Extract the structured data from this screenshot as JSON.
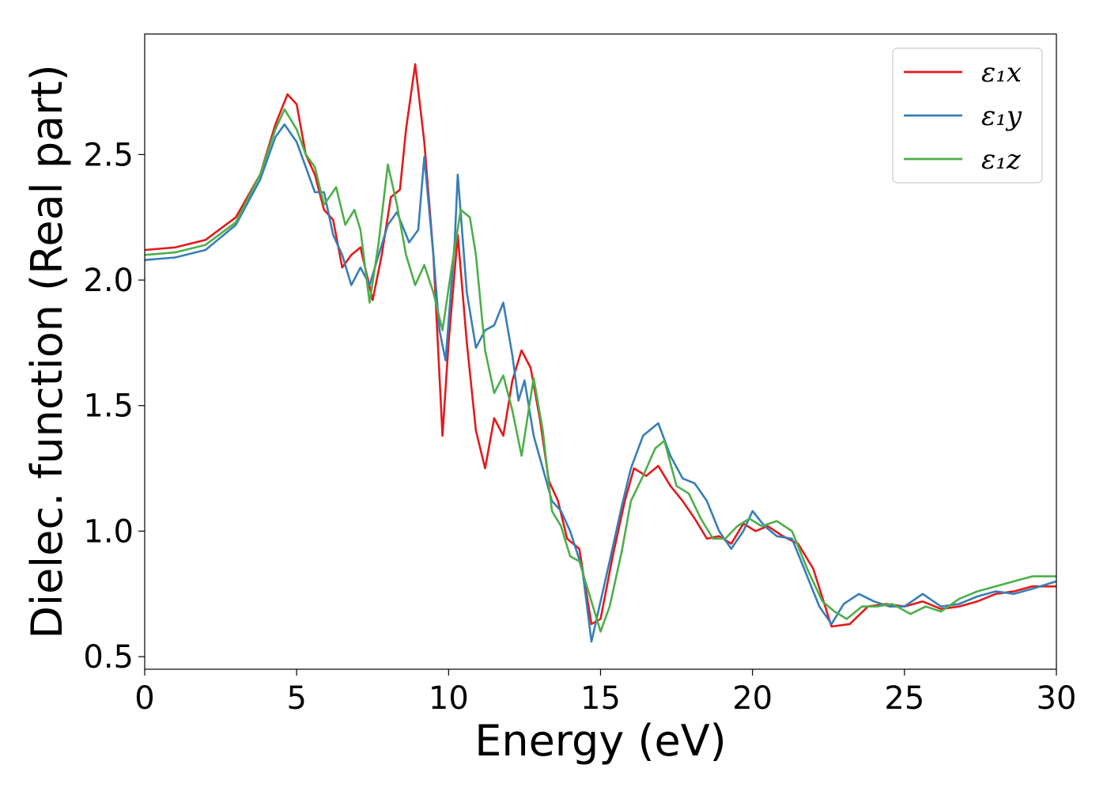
{
  "chart_data": {
    "type": "line",
    "xlabel": "Energy (eV)",
    "ylabel": "Dielec. function (Real part)",
    "xlim": [
      0,
      30
    ],
    "ylim": [
      0.45,
      2.98
    ],
    "xticks": [
      0,
      5,
      10,
      15,
      20,
      25,
      30
    ],
    "xtick_labels": [
      "0",
      "5",
      "10",
      "15",
      "20",
      "25",
      "30"
    ],
    "yticks": [
      0.5,
      1.0,
      1.5,
      2.0,
      2.5
    ],
    "ytick_labels": [
      "0.5",
      "1.0",
      "1.5",
      "2.0",
      "2.5"
    ],
    "grid": false,
    "legend_position": "top-right",
    "series": [
      {
        "name": "ε₁x",
        "color": "#e41a1c",
        "points": [
          [
            0,
            2.12
          ],
          [
            1,
            2.13
          ],
          [
            2,
            2.16
          ],
          [
            3,
            2.25
          ],
          [
            3.8,
            2.42
          ],
          [
            4.3,
            2.62
          ],
          [
            4.7,
            2.74
          ],
          [
            5.0,
            2.7
          ],
          [
            5.3,
            2.5
          ],
          [
            5.6,
            2.42
          ],
          [
            5.9,
            2.28
          ],
          [
            6.2,
            2.24
          ],
          [
            6.5,
            2.05
          ],
          [
            6.8,
            2.1
          ],
          [
            7.1,
            2.13
          ],
          [
            7.5,
            1.92
          ],
          [
            7.8,
            2.1
          ],
          [
            8.1,
            2.33
          ],
          [
            8.4,
            2.36
          ],
          [
            8.6,
            2.6
          ],
          [
            8.9,
            2.86
          ],
          [
            9.2,
            2.55
          ],
          [
            9.5,
            2.1
          ],
          [
            9.8,
            1.38
          ],
          [
            10.0,
            1.75
          ],
          [
            10.3,
            2.18
          ],
          [
            10.6,
            1.75
          ],
          [
            10.9,
            1.4
          ],
          [
            11.2,
            1.25
          ],
          [
            11.5,
            1.45
          ],
          [
            11.8,
            1.38
          ],
          [
            12.1,
            1.6
          ],
          [
            12.4,
            1.72
          ],
          [
            12.7,
            1.65
          ],
          [
            13.0,
            1.45
          ],
          [
            13.3,
            1.2
          ],
          [
            13.6,
            1.12
          ],
          [
            13.9,
            0.97
          ],
          [
            14.3,
            0.93
          ],
          [
            14.7,
            0.63
          ],
          [
            15.0,
            0.65
          ],
          [
            15.4,
            0.9
          ],
          [
            15.8,
            1.12
          ],
          [
            16.1,
            1.25
          ],
          [
            16.5,
            1.22
          ],
          [
            16.9,
            1.26
          ],
          [
            17.3,
            1.18
          ],
          [
            17.7,
            1.12
          ],
          [
            18.1,
            1.05
          ],
          [
            18.5,
            0.97
          ],
          [
            18.9,
            0.98
          ],
          [
            19.3,
            0.95
          ],
          [
            19.7,
            1.03
          ],
          [
            20.1,
            1.0
          ],
          [
            20.5,
            1.02
          ],
          [
            21.0,
            0.98
          ],
          [
            21.5,
            0.95
          ],
          [
            22.0,
            0.85
          ],
          [
            22.6,
            0.62
          ],
          [
            23.2,
            0.63
          ],
          [
            23.8,
            0.7
          ],
          [
            24.4,
            0.71
          ],
          [
            25.0,
            0.7
          ],
          [
            25.6,
            0.72
          ],
          [
            26.2,
            0.69
          ],
          [
            26.8,
            0.7
          ],
          [
            27.4,
            0.72
          ],
          [
            28.0,
            0.75
          ],
          [
            28.6,
            0.76
          ],
          [
            29.2,
            0.78
          ],
          [
            30,
            0.78
          ]
        ]
      },
      {
        "name": "ε₁y",
        "color": "#377eb8",
        "points": [
          [
            0,
            2.08
          ],
          [
            1,
            2.09
          ],
          [
            2,
            2.12
          ],
          [
            3,
            2.22
          ],
          [
            3.8,
            2.4
          ],
          [
            4.3,
            2.57
          ],
          [
            4.6,
            2.62
          ],
          [
            5.0,
            2.55
          ],
          [
            5.3,
            2.45
          ],
          [
            5.6,
            2.35
          ],
          [
            5.9,
            2.35
          ],
          [
            6.2,
            2.18
          ],
          [
            6.5,
            2.1
          ],
          [
            6.8,
            1.98
          ],
          [
            7.1,
            2.05
          ],
          [
            7.4,
            1.98
          ],
          [
            7.7,
            2.1
          ],
          [
            8.0,
            2.22
          ],
          [
            8.3,
            2.27
          ],
          [
            8.7,
            2.15
          ],
          [
            9.0,
            2.2
          ],
          [
            9.2,
            2.49
          ],
          [
            9.5,
            2.1
          ],
          [
            9.7,
            1.8
          ],
          [
            9.9,
            1.68
          ],
          [
            10.2,
            2.15
          ],
          [
            10.3,
            2.42
          ],
          [
            10.6,
            1.95
          ],
          [
            10.9,
            1.73
          ],
          [
            11.2,
            1.8
          ],
          [
            11.5,
            1.82
          ],
          [
            11.8,
            1.91
          ],
          [
            12.1,
            1.7
          ],
          [
            12.3,
            1.52
          ],
          [
            12.5,
            1.6
          ],
          [
            12.8,
            1.38
          ],
          [
            13.1,
            1.25
          ],
          [
            13.4,
            1.12
          ],
          [
            13.7,
            1.08
          ],
          [
            14.0,
            1.0
          ],
          [
            14.4,
            0.85
          ],
          [
            14.7,
            0.56
          ],
          [
            15.0,
            0.72
          ],
          [
            15.3,
            0.88
          ],
          [
            15.7,
            1.1
          ],
          [
            16.0,
            1.25
          ],
          [
            16.4,
            1.38
          ],
          [
            16.9,
            1.43
          ],
          [
            17.3,
            1.3
          ],
          [
            17.7,
            1.21
          ],
          [
            18.1,
            1.19
          ],
          [
            18.5,
            1.12
          ],
          [
            18.9,
            1.0
          ],
          [
            19.3,
            0.93
          ],
          [
            19.7,
            1.0
          ],
          [
            20.0,
            1.08
          ],
          [
            20.4,
            1.02
          ],
          [
            20.8,
            0.98
          ],
          [
            21.3,
            0.97
          ],
          [
            21.7,
            0.85
          ],
          [
            22.2,
            0.7
          ],
          [
            22.6,
            0.63
          ],
          [
            23.0,
            0.71
          ],
          [
            23.5,
            0.75
          ],
          [
            24.0,
            0.72
          ],
          [
            24.5,
            0.7
          ],
          [
            25.0,
            0.7
          ],
          [
            25.6,
            0.75
          ],
          [
            26.2,
            0.7
          ],
          [
            26.8,
            0.71
          ],
          [
            27.4,
            0.74
          ],
          [
            28.0,
            0.76
          ],
          [
            28.6,
            0.75
          ],
          [
            29.2,
            0.77
          ],
          [
            30,
            0.8
          ]
        ]
      },
      {
        "name": "ε₁z",
        "color": "#4daf4a",
        "points": [
          [
            0,
            2.1
          ],
          [
            1,
            2.11
          ],
          [
            2,
            2.14
          ],
          [
            3,
            2.23
          ],
          [
            3.8,
            2.42
          ],
          [
            4.3,
            2.6
          ],
          [
            4.6,
            2.68
          ],
          [
            5.0,
            2.6
          ],
          [
            5.3,
            2.5
          ],
          [
            5.6,
            2.45
          ],
          [
            5.9,
            2.3
          ],
          [
            6.3,
            2.37
          ],
          [
            6.6,
            2.22
          ],
          [
            6.9,
            2.28
          ],
          [
            7.1,
            2.2
          ],
          [
            7.4,
            1.91
          ],
          [
            7.7,
            2.15
          ],
          [
            8.0,
            2.46
          ],
          [
            8.3,
            2.3
          ],
          [
            8.6,
            2.1
          ],
          [
            8.9,
            1.98
          ],
          [
            9.2,
            2.06
          ],
          [
            9.5,
            1.95
          ],
          [
            9.8,
            1.8
          ],
          [
            10.1,
            2.05
          ],
          [
            10.4,
            2.28
          ],
          [
            10.7,
            2.25
          ],
          [
            10.9,
            2.1
          ],
          [
            11.2,
            1.72
          ],
          [
            11.5,
            1.55
          ],
          [
            11.8,
            1.62
          ],
          [
            12.1,
            1.48
          ],
          [
            12.4,
            1.3
          ],
          [
            12.8,
            1.61
          ],
          [
            13.1,
            1.4
          ],
          [
            13.4,
            1.08
          ],
          [
            13.7,
            1.02
          ],
          [
            14.0,
            0.9
          ],
          [
            14.3,
            0.88
          ],
          [
            14.7,
            0.72
          ],
          [
            15.0,
            0.6
          ],
          [
            15.3,
            0.7
          ],
          [
            15.7,
            0.92
          ],
          [
            16.0,
            1.12
          ],
          [
            16.4,
            1.22
          ],
          [
            16.8,
            1.33
          ],
          [
            17.1,
            1.36
          ],
          [
            17.5,
            1.18
          ],
          [
            17.9,
            1.15
          ],
          [
            18.3,
            1.05
          ],
          [
            18.7,
            0.97
          ],
          [
            19.1,
            0.97
          ],
          [
            19.5,
            1.02
          ],
          [
            19.9,
            1.05
          ],
          [
            20.3,
            1.02
          ],
          [
            20.8,
            1.04
          ],
          [
            21.3,
            1.0
          ],
          [
            21.8,
            0.85
          ],
          [
            22.3,
            0.72
          ],
          [
            22.7,
            0.68
          ],
          [
            23.1,
            0.65
          ],
          [
            23.6,
            0.7
          ],
          [
            24.1,
            0.7
          ],
          [
            24.6,
            0.71
          ],
          [
            25.2,
            0.67
          ],
          [
            25.7,
            0.7
          ],
          [
            26.2,
            0.68
          ],
          [
            26.8,
            0.73
          ],
          [
            27.4,
            0.76
          ],
          [
            28.0,
            0.78
          ],
          [
            28.6,
            0.8
          ],
          [
            29.2,
            0.82
          ],
          [
            30,
            0.82
          ]
        ]
      }
    ]
  }
}
